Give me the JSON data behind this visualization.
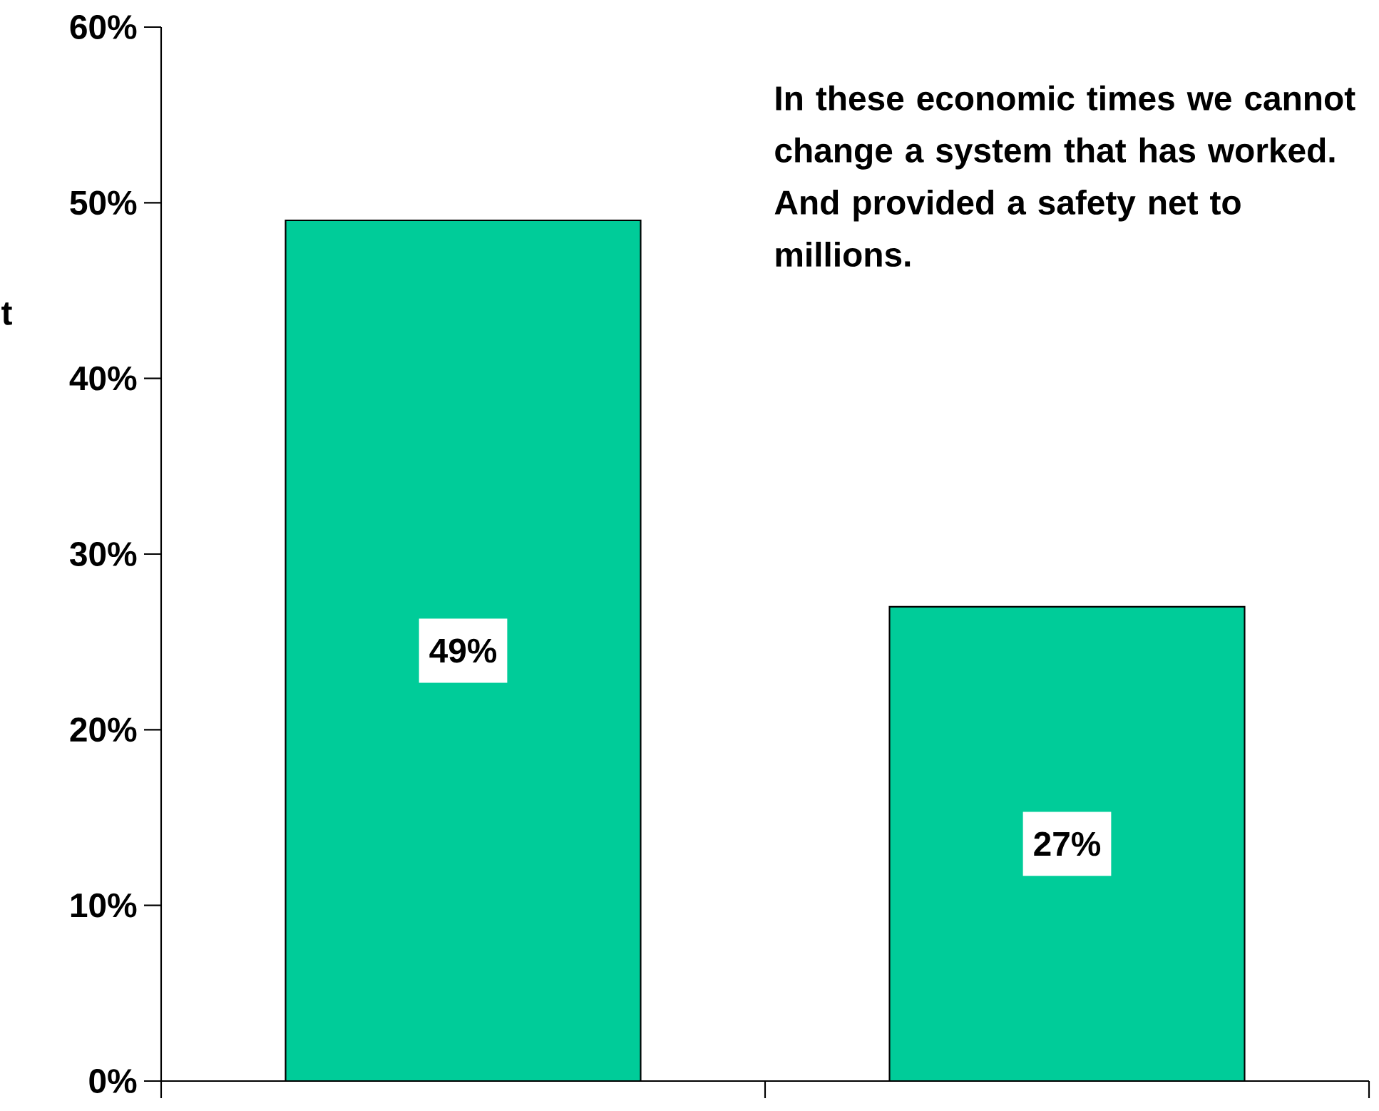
{
  "chart_data": {
    "type": "bar",
    "categories": [
      null,
      null
    ],
    "values": [
      49,
      27
    ],
    "color": "#00cc99",
    "value_labels": [
      "49%",
      "27%"
    ],
    "ylim": [
      0,
      60
    ],
    "yticks": [
      {
        "value": 0,
        "label": "0%"
      },
      {
        "value": 10,
        "label": "10%"
      },
      {
        "value": 20,
        "label": "20%"
      },
      {
        "value": 30,
        "label": "30%"
      },
      {
        "value": 40,
        "label": "40%"
      },
      {
        "value": 50,
        "label": "50%"
      },
      {
        "value": 60,
        "label": "60%"
      }
    ],
    "tick_labels": "y",
    "annotations": [
      "In these economic times we cannot change a system that has worked. And provided a safety net to millions.",
      "t"
    ]
  }
}
